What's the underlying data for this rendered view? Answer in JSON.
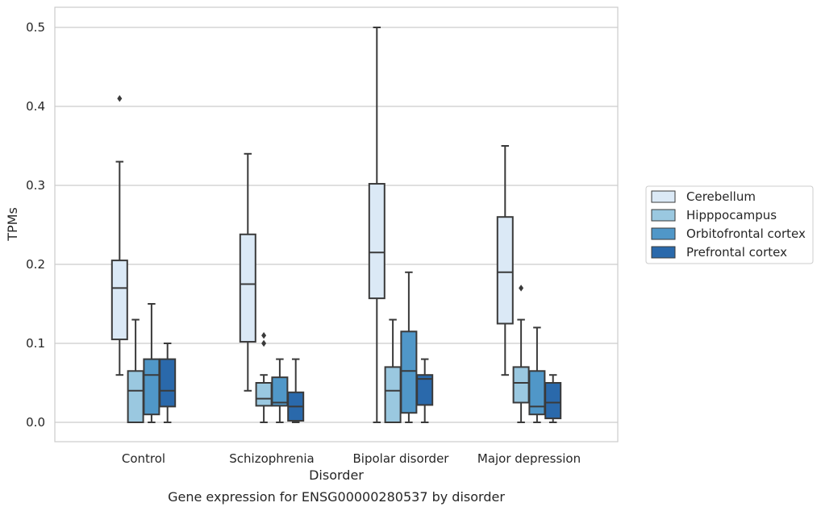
{
  "chart_data": {
    "type": "boxplot",
    "title": "",
    "caption": "Gene expression for ENSG00000280537 by disorder",
    "xlabel": "Disorder",
    "ylabel": "TPMs",
    "ylim": [
      -0.025,
      0.525
    ],
    "yticks": [
      0.0,
      0.1,
      0.2,
      0.3,
      0.4,
      0.5
    ],
    "ytick_labels": [
      "0.0",
      "0.1",
      "0.2",
      "0.3",
      "0.4",
      "0.5"
    ],
    "grid": "horizontal",
    "legend_position": "right",
    "categories": [
      "Control",
      "Schizophrenia",
      "Bipolar disorder",
      "Major depression"
    ],
    "series": [
      {
        "name": "Cerebellum",
        "color": "#dbe9f6",
        "boxes": [
          {
            "whislo": 0.06,
            "q1": 0.105,
            "med": 0.17,
            "q3": 0.205,
            "whishi": 0.33,
            "fliers": [
              0.41
            ]
          },
          {
            "whislo": 0.04,
            "q1": 0.102,
            "med": 0.175,
            "q3": 0.238,
            "whishi": 0.34,
            "fliers": []
          },
          {
            "whislo": 0.0,
            "q1": 0.157,
            "med": 0.215,
            "q3": 0.302,
            "whishi": 0.5,
            "fliers": []
          },
          {
            "whislo": 0.06,
            "q1": 0.125,
            "med": 0.19,
            "q3": 0.26,
            "whishi": 0.35,
            "fliers": []
          }
        ]
      },
      {
        "name": "Hipppocampus",
        "color": "#9ac8e0",
        "boxes": [
          {
            "whislo": 0.0,
            "q1": 0.0,
            "med": 0.04,
            "q3": 0.065,
            "whishi": 0.13,
            "fliers": []
          },
          {
            "whislo": 0.0,
            "q1": 0.021,
            "med": 0.03,
            "q3": 0.05,
            "whishi": 0.06,
            "fliers": [
              0.1,
              0.11
            ]
          },
          {
            "whislo": 0.0,
            "q1": 0.0,
            "med": 0.04,
            "q3": 0.07,
            "whishi": 0.13,
            "fliers": []
          },
          {
            "whislo": 0.0,
            "q1": 0.025,
            "med": 0.05,
            "q3": 0.07,
            "whishi": 0.13,
            "fliers": [
              0.17
            ]
          }
        ]
      },
      {
        "name": "Orbitofrontal cortex",
        "color": "#5097c8",
        "boxes": [
          {
            "whislo": 0.0,
            "q1": 0.01,
            "med": 0.06,
            "q3": 0.08,
            "whishi": 0.15,
            "fliers": []
          },
          {
            "whislo": 0.0,
            "q1": 0.021,
            "med": 0.025,
            "q3": 0.057,
            "whishi": 0.08,
            "fliers": []
          },
          {
            "whislo": 0.0,
            "q1": 0.012,
            "med": 0.065,
            "q3": 0.115,
            "whishi": 0.19,
            "fliers": []
          },
          {
            "whislo": 0.0,
            "q1": 0.01,
            "med": 0.02,
            "q3": 0.065,
            "whishi": 0.12,
            "fliers": []
          }
        ]
      },
      {
        "name": "Prefrontal cortex",
        "color": "#2a69ab",
        "boxes": [
          {
            "whislo": 0.0,
            "q1": 0.02,
            "med": 0.04,
            "q3": 0.08,
            "whishi": 0.1,
            "fliers": []
          },
          {
            "whislo": 0.0,
            "q1": 0.002,
            "med": 0.02,
            "q3": 0.038,
            "whishi": 0.08,
            "fliers": []
          },
          {
            "whislo": 0.0,
            "q1": 0.022,
            "med": 0.055,
            "q3": 0.06,
            "whishi": 0.08,
            "fliers": []
          },
          {
            "whislo": 0.0,
            "q1": 0.005,
            "med": 0.025,
            "q3": 0.05,
            "whishi": 0.06,
            "fliers": []
          }
        ]
      }
    ]
  }
}
